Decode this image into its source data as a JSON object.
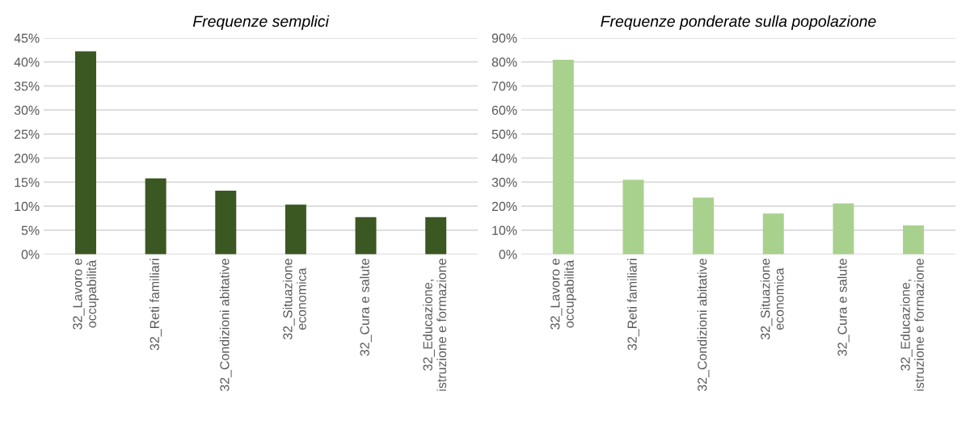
{
  "chart_data": [
    {
      "type": "bar",
      "title": "Frequenze semplici",
      "categories": [
        "32_Lavoro e\noccupabilità",
        "32_Reti familiari",
        "32_Condizioni abitative",
        "32_Situazione\neconomica",
        "32_Cura e salute",
        "32_Educazione,\nistruzione e formazione"
      ],
      "values": [
        42.2,
        15.8,
        13.2,
        10.3,
        7.7,
        7.7
      ],
      "color": "#3b5722",
      "ylim": [
        0,
        45
      ],
      "yticks": [
        {
          "value": 0,
          "label": "0%"
        },
        {
          "value": 5,
          "label": "5%"
        },
        {
          "value": 10,
          "label": "10%"
        },
        {
          "value": 15,
          "label": "15%"
        },
        {
          "value": 20,
          "label": "20%"
        },
        {
          "value": 25,
          "label": "25%"
        },
        {
          "value": 30,
          "label": "30%"
        },
        {
          "value": 35,
          "label": "35%"
        },
        {
          "value": 40,
          "label": "40%"
        },
        {
          "value": 45,
          "label": "45%"
        }
      ],
      "grid": "y"
    },
    {
      "type": "bar",
      "title": "Frequenze ponderate sulla popolazione",
      "categories": [
        "32_Lavoro e\noccupabilità",
        "32_Reti familiari",
        "32_Condizioni abitative",
        "32_Situazione\neconomica",
        "32_Cura e salute",
        "32_Educazione,\nistruzione e formazione"
      ],
      "values": [
        80.9,
        31.0,
        23.6,
        16.9,
        21.1,
        12.0
      ],
      "color": "#a9d18e",
      "ylim": [
        0,
        90
      ],
      "yticks": [
        {
          "value": 0,
          "label": "0%"
        },
        {
          "value": 10,
          "label": "10%"
        },
        {
          "value": 20,
          "label": "20%"
        },
        {
          "value": 30,
          "label": "30%"
        },
        {
          "value": 40,
          "label": "40%"
        },
        {
          "value": 50,
          "label": "50%"
        },
        {
          "value": 60,
          "label": "60%"
        },
        {
          "value": 70,
          "label": "70%"
        },
        {
          "value": 80,
          "label": "80%"
        },
        {
          "value": 90,
          "label": "90%"
        }
      ],
      "grid": "y"
    }
  ]
}
